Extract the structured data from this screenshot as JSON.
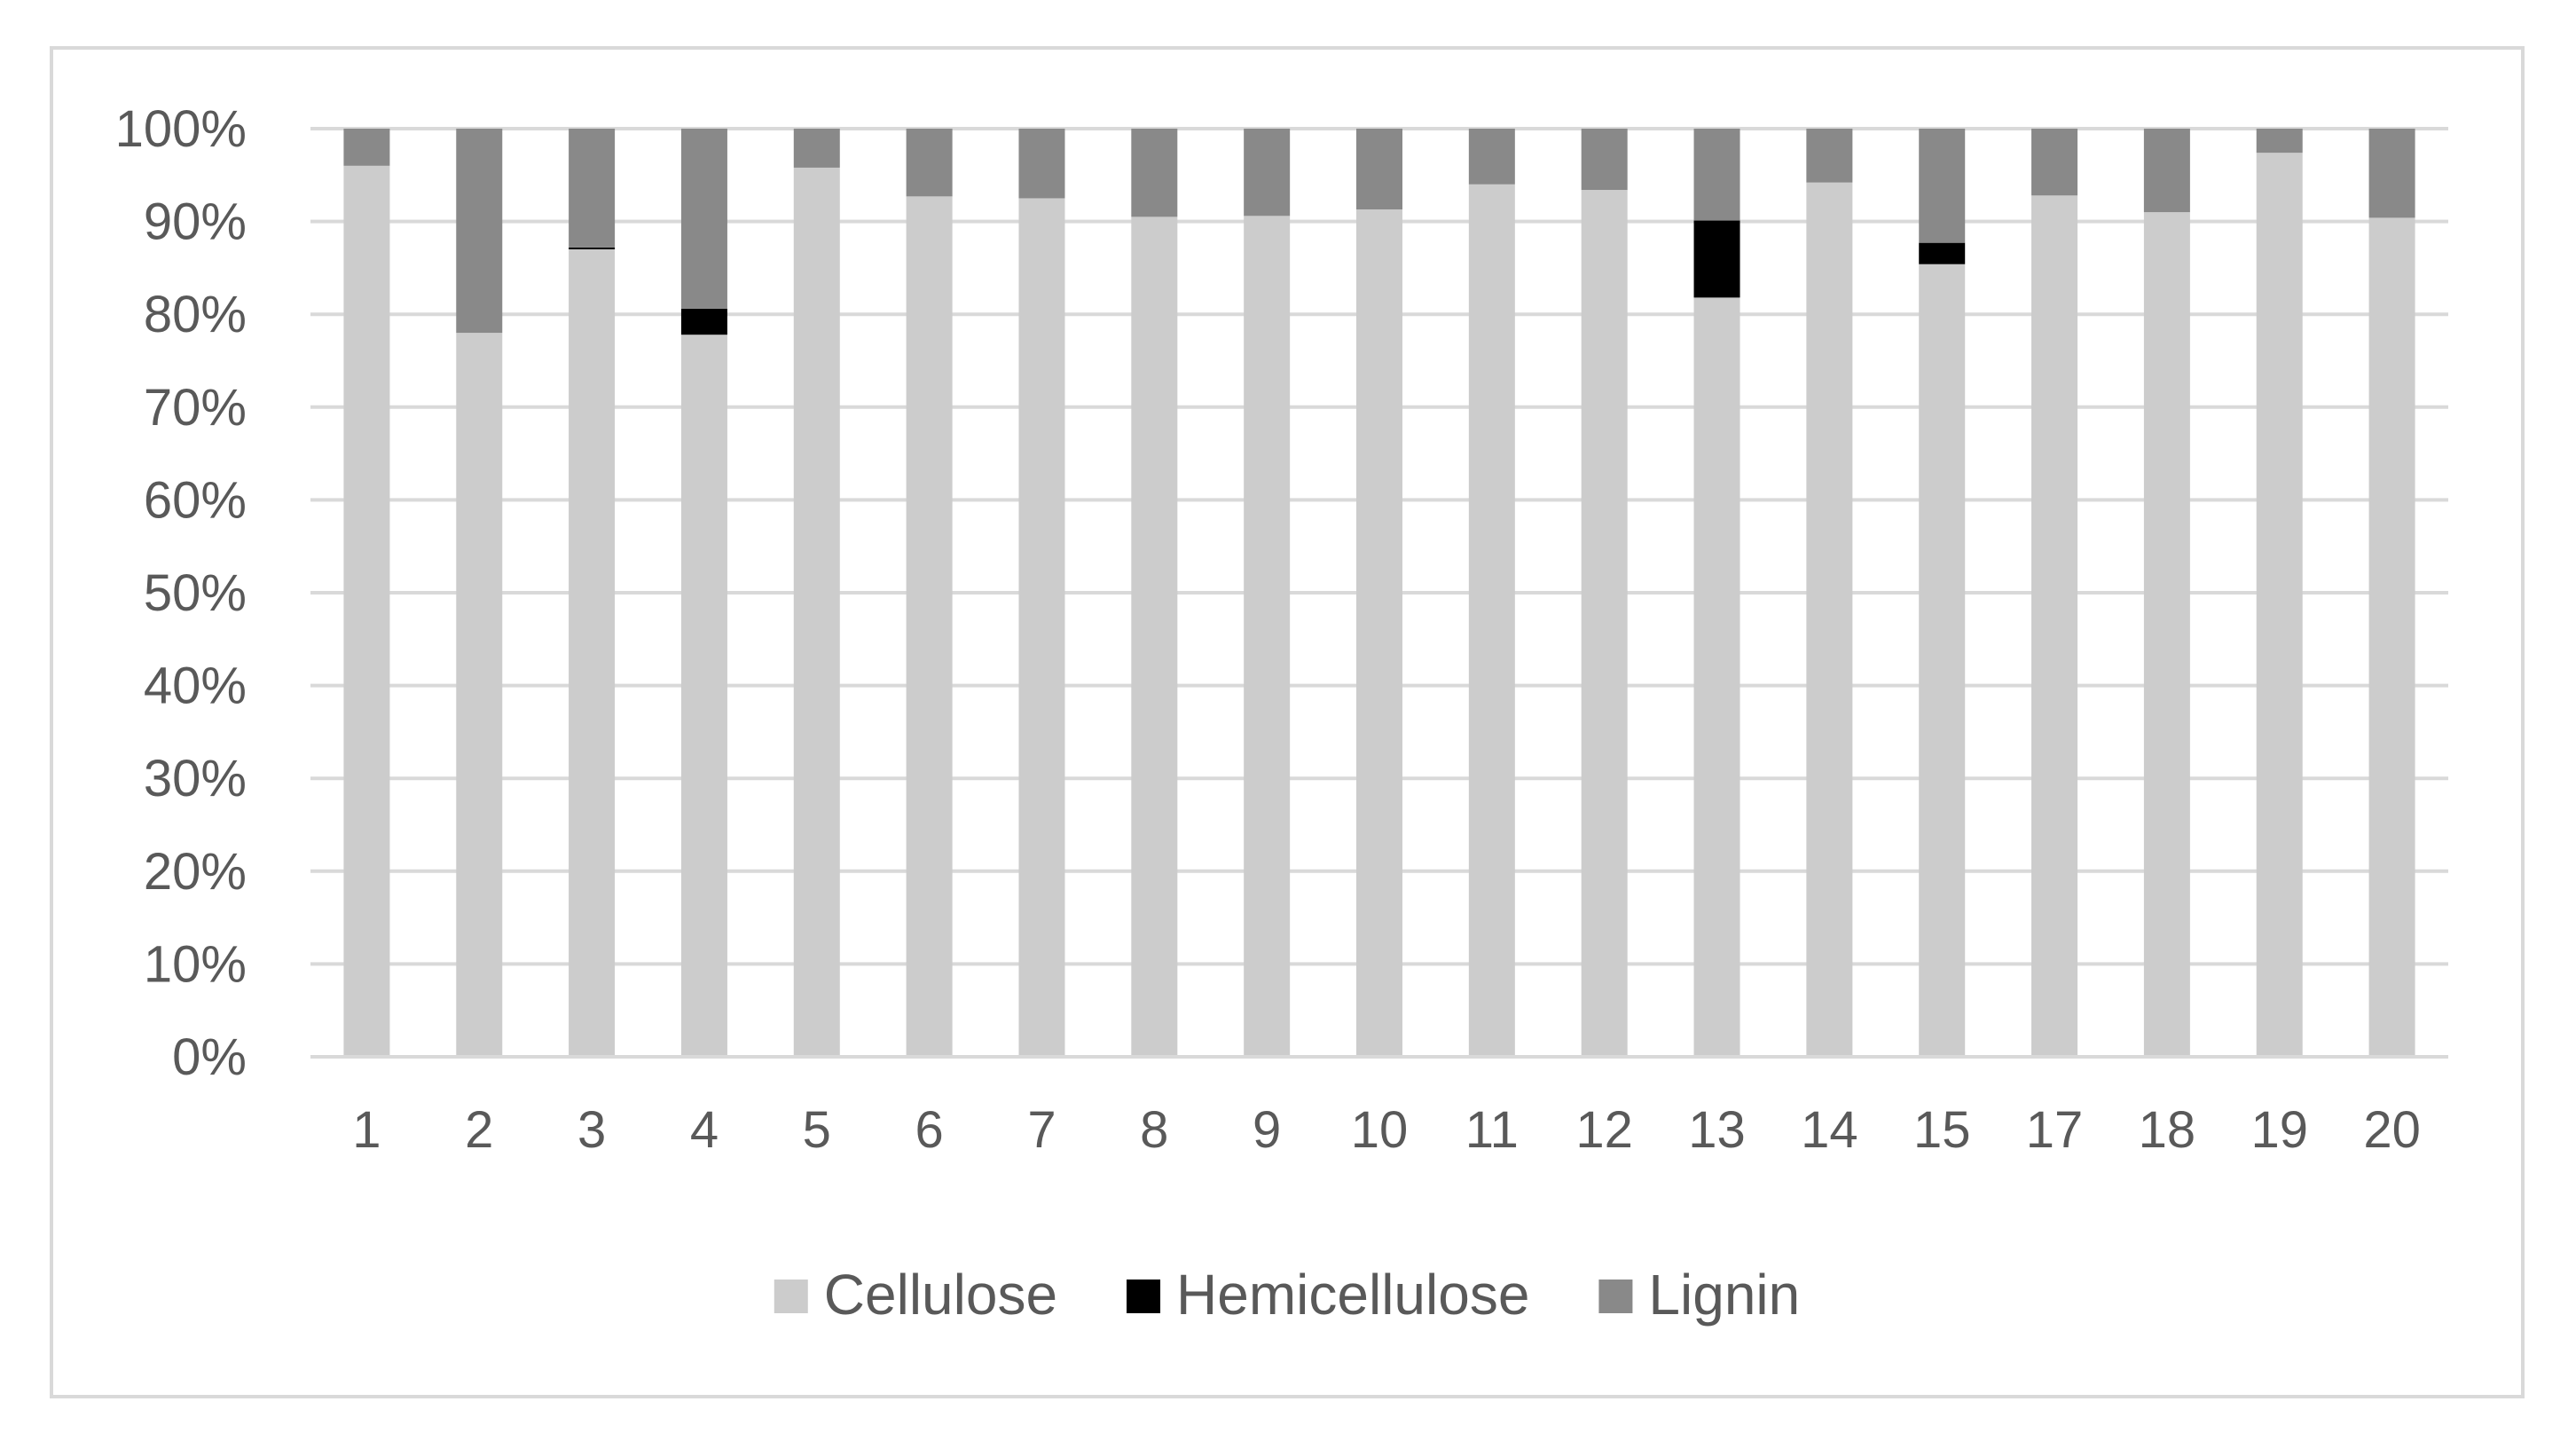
{
  "chart_data": {
    "type": "bar",
    "stacked": true,
    "percent_stacked": true,
    "categories": [
      "1",
      "2",
      "3",
      "4",
      "5",
      "6",
      "7",
      "8",
      "9",
      "10",
      "11",
      "12",
      "13",
      "14",
      "15",
      "17",
      "18",
      "19",
      "20"
    ],
    "series": [
      {
        "name": "Cellulose",
        "color": "#cccccc",
        "values": [
          96.0,
          78.0,
          87.0,
          77.8,
          95.8,
          92.7,
          92.5,
          90.5,
          90.6,
          91.3,
          94.0,
          93.4,
          81.8,
          94.2,
          85.4,
          92.8,
          91.0,
          97.4,
          90.4
        ]
      },
      {
        "name": "Hemicellulose",
        "color": "#000000",
        "values": [
          0,
          0,
          0.2,
          2.8,
          0,
          0,
          0,
          0,
          0,
          0,
          0,
          0,
          8.3,
          0,
          2.3,
          0,
          0,
          0,
          0
        ]
      },
      {
        "name": "Lignin",
        "color": "#898989",
        "values": [
          4.0,
          22.0,
          12.8,
          19.4,
          4.2,
          7.3,
          7.5,
          9.5,
          9.4,
          8.7,
          6.0,
          6.6,
          9.9,
          5.8,
          12.3,
          7.2,
          9.0,
          2.6,
          9.6
        ]
      }
    ],
    "y_ticks": [
      "0%",
      "10%",
      "20%",
      "30%",
      "40%",
      "50%",
      "60%",
      "70%",
      "80%",
      "90%",
      "100%"
    ],
    "ylim": [
      0,
      100
    ],
    "grid": true,
    "legend_position": "bottom",
    "title": "",
    "xlabel": "",
    "ylabel": ""
  }
}
